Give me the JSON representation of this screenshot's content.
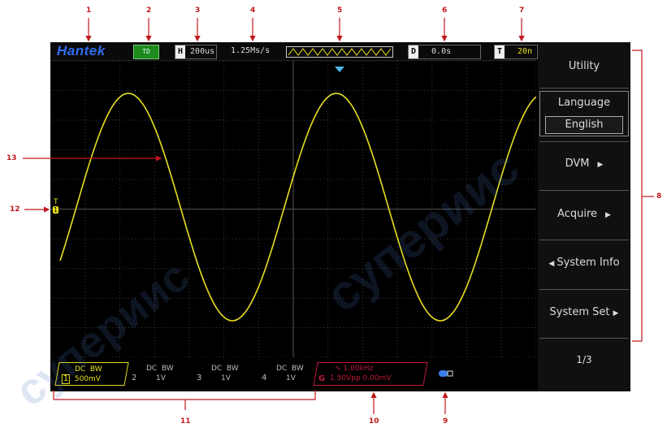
{
  "topbar": {
    "brand": "Hantek",
    "run_state": "TD",
    "timebase_key": "H",
    "timebase_value": "200us",
    "sample_rate": "1.25Ms/s",
    "delay_key": "D",
    "delay_value": "0.0s",
    "trigger_key": "T",
    "trigger_value": "20n"
  },
  "menu": {
    "title": "Utility",
    "items": [
      {
        "label": "Language",
        "value": "English"
      },
      {
        "label": "DVM"
      },
      {
        "label": "Acquire"
      },
      {
        "label": "System Info"
      },
      {
        "label": "System Set"
      }
    ],
    "page": "1/3"
  },
  "channels": [
    {
      "num": "1",
      "line1": "DC  BW",
      "line2": "500mV"
    },
    {
      "num": "2",
      "line1": "DC  BW",
      "line2": "1V"
    },
    {
      "num": "3",
      "line1": "DC  BW",
      "line2": "1V"
    },
    {
      "num": "4",
      "line1": "DC  BW",
      "line2": "1V"
    }
  ],
  "generator": {
    "key": "G",
    "freq": "1.00kHz",
    "amp": "1.50Vpp 0.00mV"
  },
  "trigger_marker": {
    "label": "T",
    "ch": "1"
  },
  "callouts": [
    "1",
    "2",
    "3",
    "4",
    "5",
    "6",
    "7",
    "8",
    "9",
    "10",
    "11",
    "12",
    "13"
  ],
  "watermark": "супериис",
  "colors": {
    "trace": "#e8e020",
    "accent": "#c0181c",
    "brand": "#2f6cf0"
  },
  "icons": {
    "usb": "usb-icon",
    "arrow": "callout-arrow"
  }
}
